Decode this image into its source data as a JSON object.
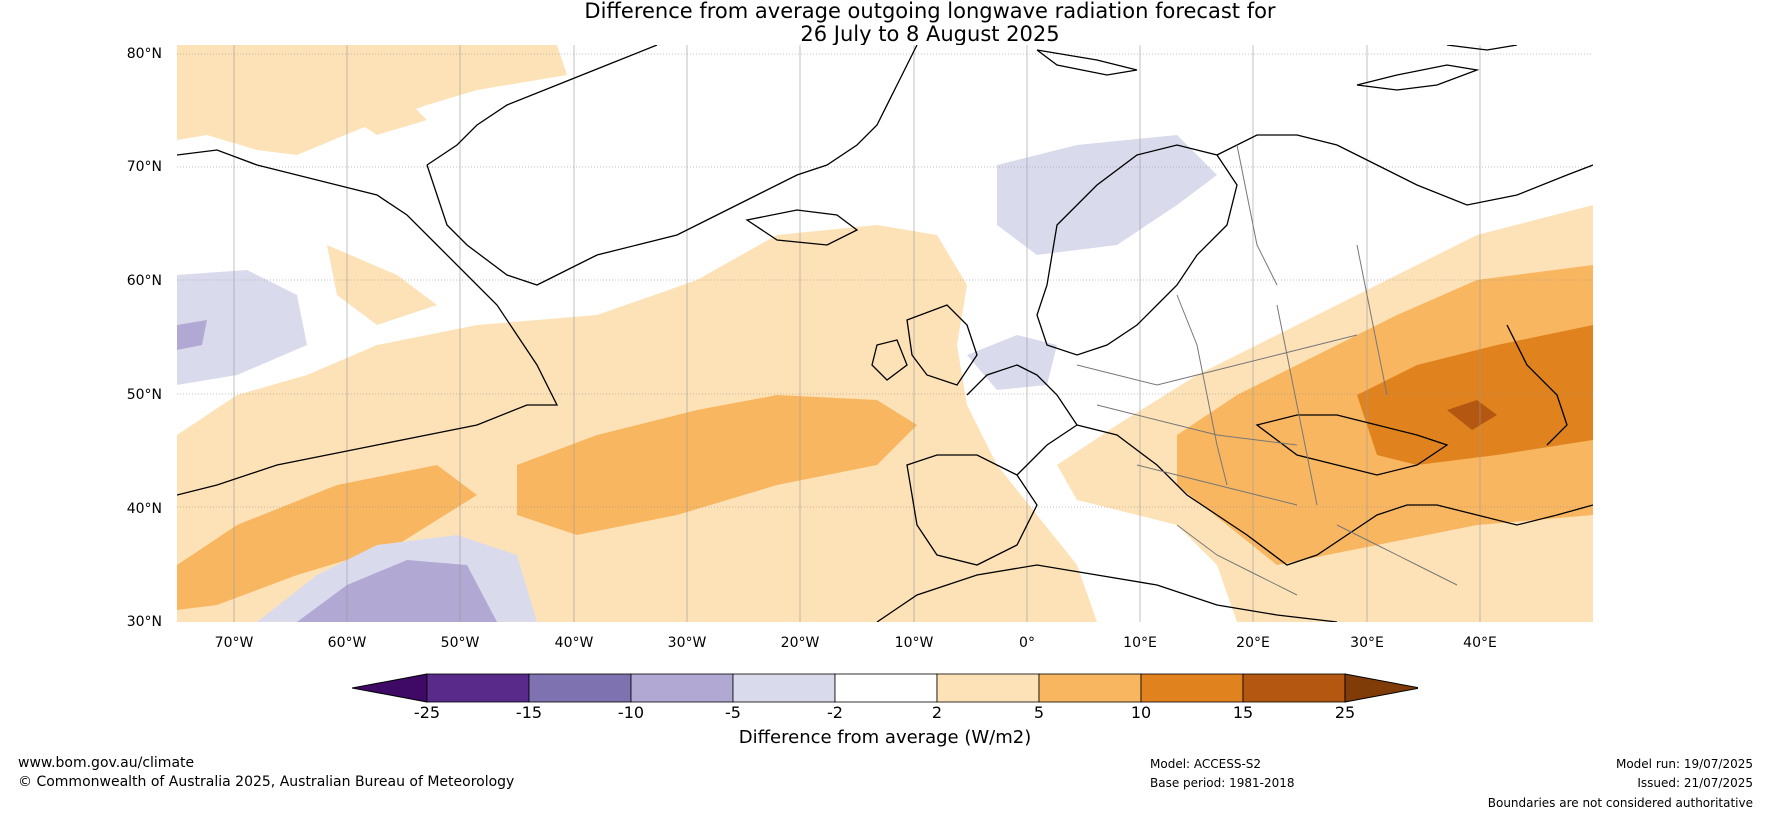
{
  "title": {
    "line1": "Difference from average outgoing longwave radiation forecast for",
    "line2": "26 July to 8 August 2025"
  },
  "map": {
    "lat_labels": [
      "80°N",
      "70°N",
      "60°N",
      "50°N",
      "40°N",
      "30°N"
    ],
    "lon_labels": [
      "70°W",
      "60°W",
      "50°W",
      "40°W",
      "30°W",
      "20°W",
      "10°W",
      "0°",
      "10°E",
      "20°E",
      "30°E",
      "40°E"
    ],
    "lat_range": [
      30,
      81
    ],
    "lon_range": [
      -75,
      50
    ]
  },
  "legend": {
    "labels": [
      "-25",
      "-15",
      "-10",
      "-5",
      "-2",
      "2",
      "5",
      "10",
      "15",
      "25"
    ],
    "colors": [
      "#3f0a66",
      "#5a2a8a",
      "#7f72b0",
      "#b1a9d4",
      "#dadaed",
      "#ffffff",
      "#fde2b8",
      "#f9b660",
      "#e0831f",
      "#b45710",
      "#7f3b08"
    ],
    "title": "Difference from average (W/m2)"
  },
  "footer": {
    "website": "www.bom.gov.au/climate",
    "copyright": "© Commonwealth of Australia 2025, Australian Bureau of Meteorology",
    "model": "Model: ACCESS-S2",
    "base_period": "Base period: 1981-2018",
    "model_run": "Model run: 19/07/2025",
    "issued": "Issued: 21/07/2025",
    "disclaimer": "Boundaries are not considered authoritative"
  }
}
